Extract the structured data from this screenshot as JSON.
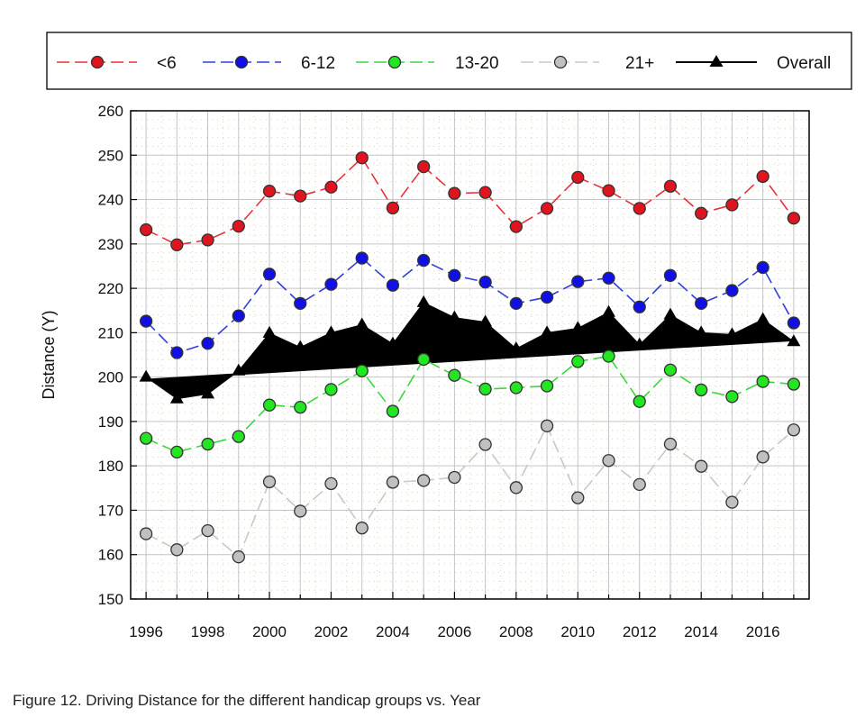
{
  "chart_data": {
    "type": "line",
    "title": "",
    "xlabel": "",
    "ylabel": "Distance (Y)",
    "xlim": [
      1995.5,
      2017.5
    ],
    "ylim": [
      150,
      260
    ],
    "yticks": [
      150,
      160,
      170,
      180,
      190,
      200,
      210,
      220,
      230,
      240,
      250,
      260
    ],
    "xticks": [
      1996,
      1998,
      2000,
      2002,
      2004,
      2006,
      2008,
      2010,
      2012,
      2014,
      2016
    ],
    "grid": true,
    "legend_position": "top",
    "x": [
      1996,
      1997,
      1998,
      1999,
      2000,
      2001,
      2002,
      2003,
      2004,
      2005,
      2006,
      2007,
      2008,
      2009,
      2010,
      2011,
      2012,
      2013,
      2014,
      2015,
      2016,
      2017
    ],
    "series": [
      {
        "name": "<6",
        "color": "#e0141e",
        "line_color": "#e8303a",
        "values": [
          233.2,
          229.8,
          230.9,
          234.0,
          241.9,
          240.8,
          242.8,
          249.4,
          238.1,
          247.4,
          241.4,
          241.6,
          233.9,
          238.0,
          245.0,
          242.0,
          238.0,
          243.0,
          236.9,
          238.8,
          245.2,
          235.8
        ]
      },
      {
        "name": "6-12",
        "color": "#1010e6",
        "line_color": "#2f3fd8",
        "values": [
          212.6,
          205.5,
          207.6,
          213.8,
          223.2,
          216.6,
          220.9,
          226.8,
          220.7,
          226.3,
          222.9,
          221.4,
          216.6,
          218.0,
          221.5,
          222.3,
          215.8,
          222.9,
          216.6,
          219.5,
          224.7,
          212.2
        ]
      },
      {
        "name": "13-20",
        "color": "#22e622",
        "line_color": "#3ad83a",
        "values": [
          186.2,
          183.1,
          184.9,
          186.6,
          193.7,
          193.2,
          197.2,
          201.4,
          192.3,
          204.0,
          200.4,
          197.3,
          197.6,
          198.0,
          203.5,
          204.7,
          194.5,
          201.6,
          197.1,
          195.6,
          199.0,
          198.4
        ]
      },
      {
        "name": "21+",
        "color": "#c0c0c0",
        "line_color": "#c8c8c8",
        "values": [
          164.7,
          161.1,
          165.4,
          159.5,
          176.4,
          169.8,
          176.0,
          166.0,
          176.3,
          176.7,
          177.4,
          184.8,
          175.1,
          189.0,
          172.8,
          181.2,
          175.8,
          184.9,
          179.9,
          171.8,
          182.0,
          188.1
        ]
      },
      {
        "name": "Overall",
        "color": "#000000",
        "line_color": "#000000",
        "values": [
          200.0,
          195.1,
          196.2,
          201.4,
          209.9,
          206.7,
          210.0,
          211.8,
          207.5,
          216.8,
          213.4,
          212.4,
          206.4,
          210.0,
          211.0,
          214.6,
          207.3,
          214.0,
          210.0,
          209.6,
          213.0,
          208.0
        ]
      }
    ],
    "trend": {
      "series": "Overall",
      "start": [
        1996,
        199.4
      ],
      "end": [
        2017,
        208.3
      ]
    }
  },
  "caption": "Figure 12. Driving Distance for the different handicap groups vs. Year"
}
